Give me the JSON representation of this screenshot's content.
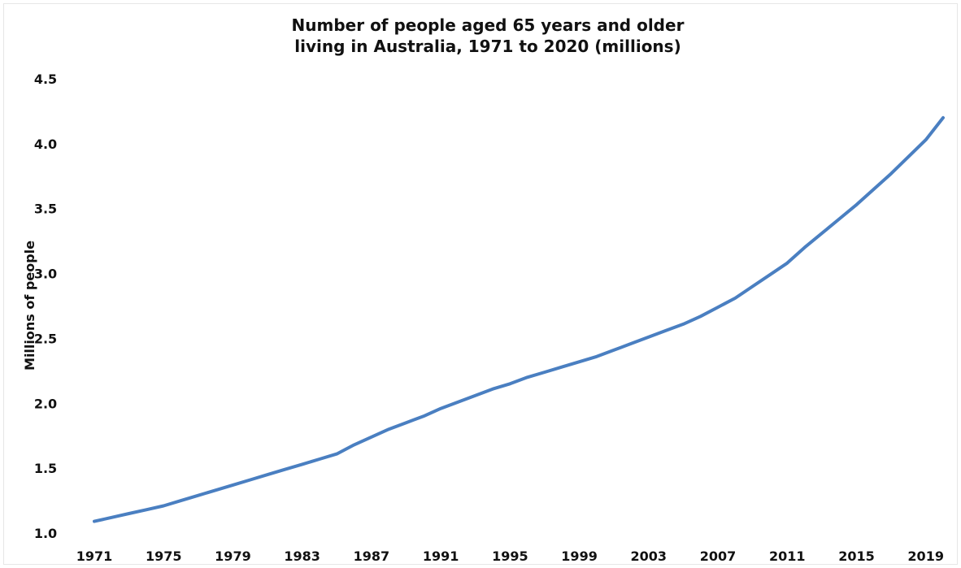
{
  "chart_data": {
    "type": "line",
    "title_lines": [
      "Number of people aged 65 years and older",
      "living in Australia, 1971 to 2020 (millions)"
    ],
    "xlabel": "",
    "ylabel": "Millions of people",
    "ylim": [
      1.0,
      4.5
    ],
    "yticks": [
      "1.0",
      "1.5",
      "2.0",
      "2.5",
      "3.0",
      "3.5",
      "4.0",
      "4.5"
    ],
    "xlim": [
      1971,
      2020
    ],
    "xticks": [
      "1971",
      "1975",
      "1979",
      "1983",
      "1987",
      "1991",
      "1995",
      "1999",
      "2003",
      "2007",
      "2011",
      "2015",
      "2019"
    ],
    "grid": false,
    "legend": "none",
    "line_color": "#4a7fc1",
    "series": [
      {
        "x": [
          1971,
          1972,
          1973,
          1974,
          1975,
          1976,
          1977,
          1978,
          1979,
          1980,
          1981,
          1982,
          1983,
          1984,
          1985,
          1986,
          1987,
          1988,
          1989,
          1990,
          1991,
          1992,
          1993,
          1994,
          1995,
          1996,
          1997,
          1998,
          1999,
          2000,
          2001,
          2002,
          2003,
          2004,
          2005,
          2006,
          2007,
          2008,
          2009,
          2010,
          2011,
          2012,
          2013,
          2014,
          2015,
          2016,
          2017,
          2018,
          2019,
          2020
        ],
        "values": [
          1.09,
          1.12,
          1.15,
          1.18,
          1.21,
          1.25,
          1.29,
          1.33,
          1.37,
          1.41,
          1.45,
          1.49,
          1.53,
          1.57,
          1.61,
          1.68,
          1.74,
          1.8,
          1.85,
          1.9,
          1.96,
          2.01,
          2.06,
          2.11,
          2.15,
          2.2,
          2.24,
          2.28,
          2.32,
          2.36,
          2.41,
          2.46,
          2.51,
          2.56,
          2.61,
          2.67,
          2.74,
          2.81,
          2.9,
          2.99,
          3.08,
          3.2,
          3.31,
          3.42,
          3.53,
          3.65,
          3.77,
          3.9,
          4.03,
          4.2
        ]
      }
    ]
  }
}
